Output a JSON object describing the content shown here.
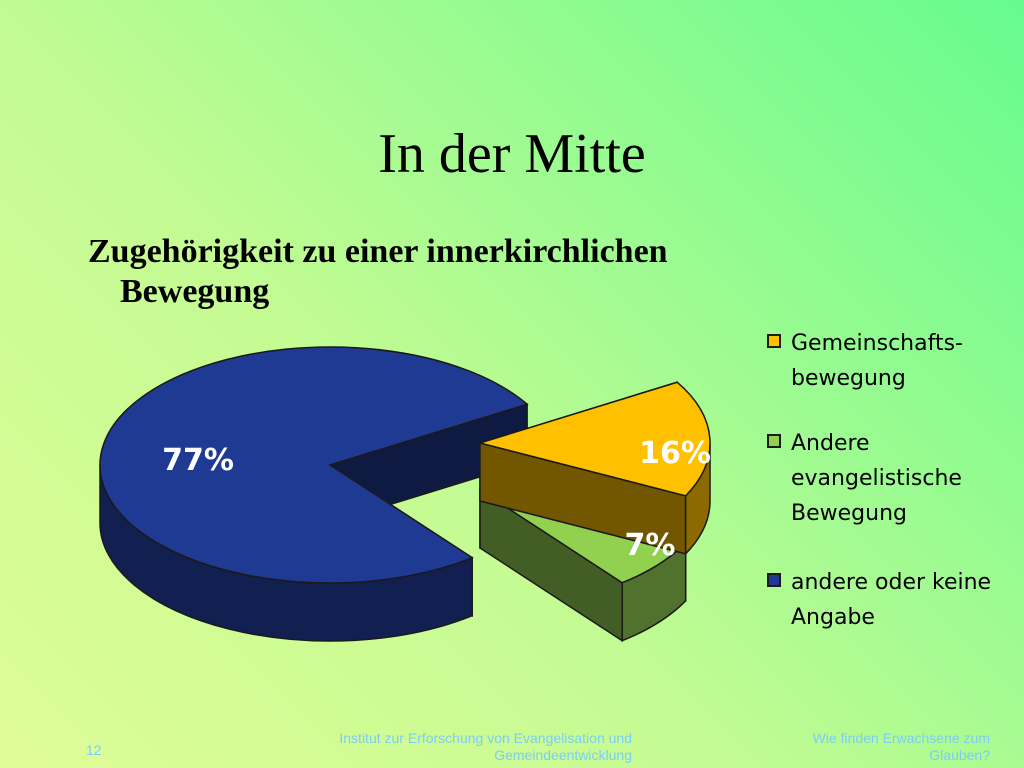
{
  "slide": {
    "title": "In der Mitte",
    "subtitle_line1": "Zugehörigkeit zu einer innerkirchlichen",
    "subtitle_line2": "Bewegung"
  },
  "chart_data": {
    "type": "pie",
    "categories": [
      "Gemeinschafts-bewegung",
      "Andere evangelistische Bewegung",
      "andere oder keine Angabe"
    ],
    "values": [
      16,
      7,
      77
    ],
    "data_labels": [
      "16%",
      "7%",
      "77%"
    ],
    "colors": [
      "#ffc000",
      "#92d050",
      "#1f3a93"
    ],
    "legend_position": "right",
    "style": "3d-exploded"
  },
  "legend": {
    "items": [
      {
        "line1": "Gemeinschafts-",
        "line2": "bewegung",
        "color": "#ffc000"
      },
      {
        "line1": "Andere",
        "line2": "evangelistische",
        "line3": "Bewegung",
        "color": "#92d050"
      },
      {
        "line1": "andere oder keine",
        "line2": "Angabe",
        "color": "#1f3a93"
      }
    ]
  },
  "footer": {
    "slide_number": "12",
    "center_line1": "Institut zur Erforschung von Evangelisation und",
    "center_line2": "Gemeindeentwicklung",
    "right_line1": "Wie finden Erwachsene zum",
    "right_line2": "Glauben?"
  }
}
